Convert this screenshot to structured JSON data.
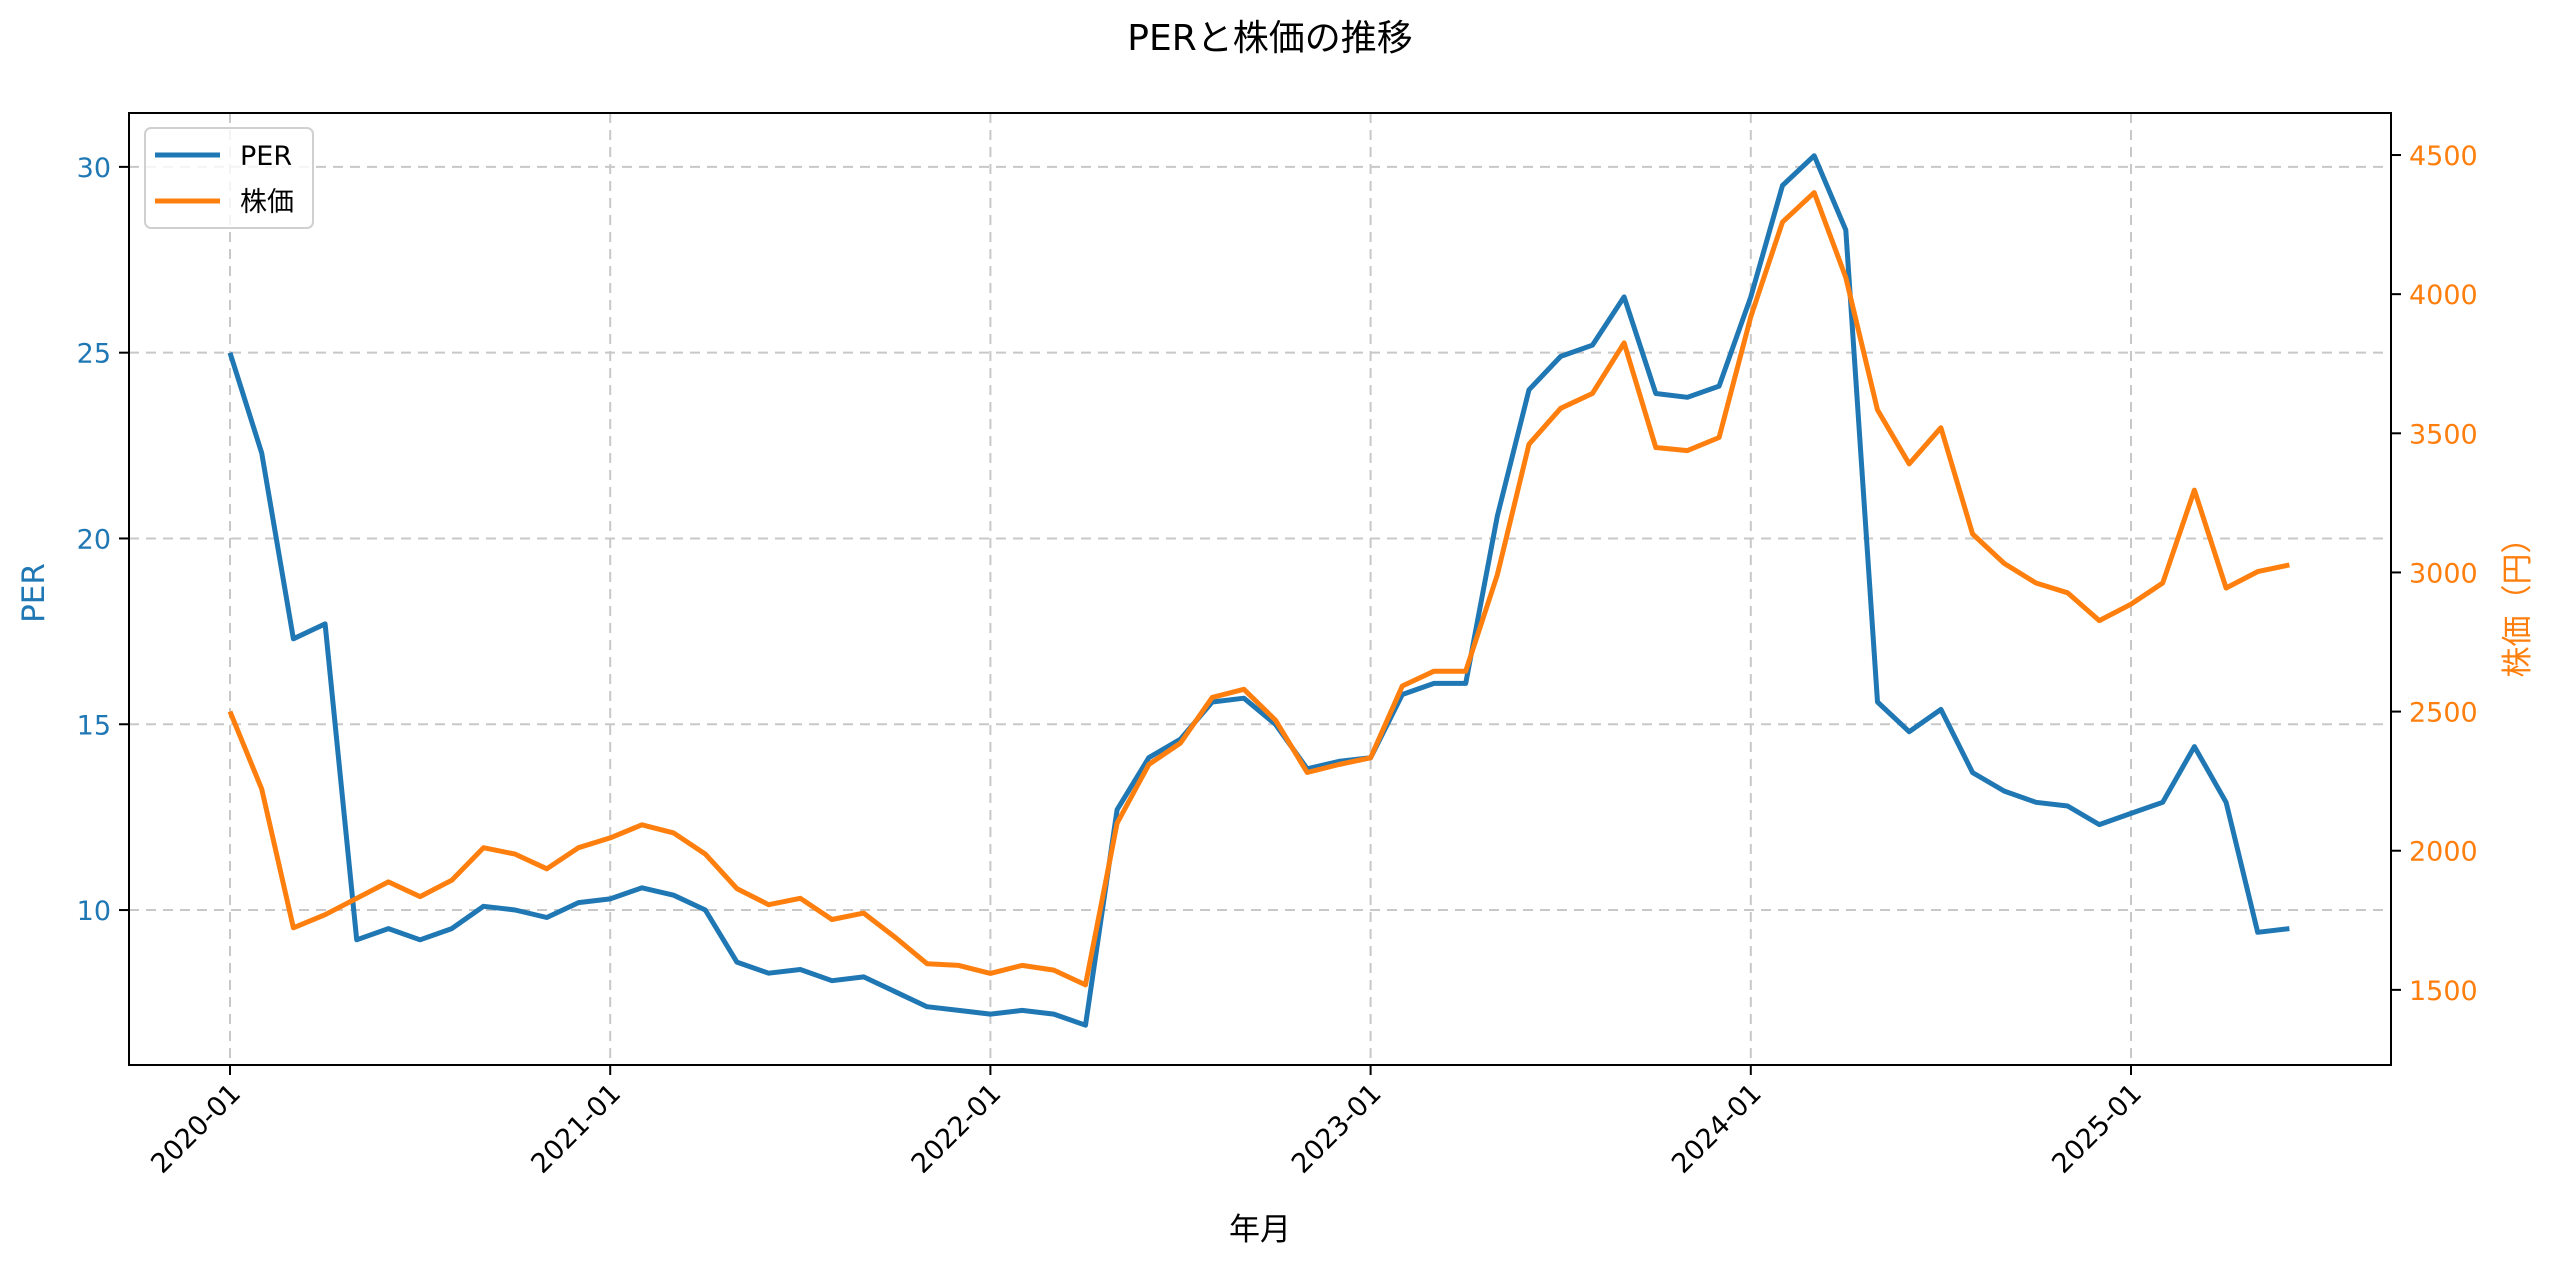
{
  "chart_data": {
    "type": "line",
    "title": "PERと株価の推移",
    "xlabel": "年月",
    "ylabel": "PER",
    "ylabel_right": "株価（円）",
    "x_ticks": [
      "2020-01",
      "2021-01",
      "2022-01",
      "2023-01",
      "2024-01",
      "2025-01"
    ],
    "y_ticks_left": [
      10,
      15,
      20,
      25,
      30
    ],
    "y_ticks_right": [
      1500,
      2000,
      2500,
      3000,
      3500,
      4000,
      4500
    ],
    "ylim_left": [
      5.83,
      31.45
    ],
    "ylim_right": [
      1230,
      4651
    ],
    "grid": true,
    "legend_position": "upper left",
    "x": [
      "2020-01",
      "2020-02",
      "2020-03",
      "2020-04",
      "2020-05",
      "2020-06",
      "2020-07",
      "2020-08",
      "2020-09",
      "2020-10",
      "2020-11",
      "2020-12",
      "2021-01",
      "2021-02",
      "2021-03",
      "2021-04",
      "2021-05",
      "2021-06",
      "2021-07",
      "2021-08",
      "2021-09",
      "2021-10",
      "2021-11",
      "2021-12",
      "2022-01",
      "2022-02",
      "2022-03",
      "2022-04",
      "2022-05",
      "2022-06",
      "2022-07",
      "2022-08",
      "2022-09",
      "2022-10",
      "2022-11",
      "2022-12",
      "2023-01",
      "2023-02",
      "2023-03",
      "2023-04",
      "2023-05",
      "2023-06",
      "2023-07",
      "2023-08",
      "2023-09",
      "2023-10",
      "2023-11",
      "2023-12",
      "2024-01",
      "2024-02",
      "2024-03",
      "2024-04",
      "2024-05",
      "2024-06",
      "2024-07",
      "2024-08",
      "2024-09",
      "2024-10",
      "2024-11",
      "2024-12",
      "2025-01",
      "2025-02",
      "2025-03",
      "2025-04",
      "2025-05",
      "2025-06"
    ],
    "series": [
      {
        "name": "PER",
        "axis": "left",
        "color": "#1f77b4",
        "values": [
          25.0,
          22.3,
          17.3,
          17.7,
          9.2,
          9.5,
          9.2,
          9.5,
          10.1,
          10.0,
          9.8,
          10.2,
          10.3,
          10.6,
          10.4,
          10.0,
          8.6,
          8.3,
          8.4,
          8.1,
          8.2,
          7.8,
          7.4,
          7.3,
          7.2,
          7.3,
          7.2,
          6.9,
          12.7,
          14.1,
          14.6,
          15.6,
          15.7,
          15.0,
          13.8,
          14.0,
          14.1,
          15.8,
          16.1,
          16.1,
          20.6,
          24.0,
          24.9,
          25.2,
          26.5,
          23.9,
          23.8,
          24.1,
          26.5,
          29.5,
          30.3,
          28.3,
          15.6,
          14.8,
          15.4,
          13.7,
          13.2,
          12.9,
          12.8,
          12.3,
          12.6,
          12.9,
          14.4,
          12.9,
          9.4,
          9.5
        ]
      },
      {
        "name": "株価",
        "axis": "right",
        "color": "#ff7f0e",
        "values": [
          2500,
          2222,
          1723,
          1770,
          1829,
          1888,
          1835,
          1894,
          2011,
          1988,
          1935,
          2011,
          2046,
          2093,
          2064,
          1988,
          1864,
          1806,
          1829,
          1753,
          1776,
          1688,
          1594,
          1588,
          1559,
          1588,
          1571,
          1518,
          2099,
          2310,
          2387,
          2551,
          2580,
          2469,
          2281,
          2310,
          2334,
          2592,
          2645,
          2645,
          2991,
          3461,
          3590,
          3643,
          3825,
          3449,
          3438,
          3485,
          3919,
          4259,
          4365,
          4060,
          3584,
          3390,
          3520,
          3138,
          3032,
          2962,
          2927,
          2827,
          2886,
          2962,
          3296,
          2944,
          3003,
          3027
        ]
      }
    ]
  },
  "legend": {
    "items": [
      {
        "label": "PER",
        "color": "#1f77b4"
      },
      {
        "label": "株価",
        "color": "#ff7f0e"
      }
    ]
  },
  "colors": {
    "left_axis": "#1f77b4",
    "right_axis": "#ff7f0e",
    "grid": "#c8c8c8"
  }
}
